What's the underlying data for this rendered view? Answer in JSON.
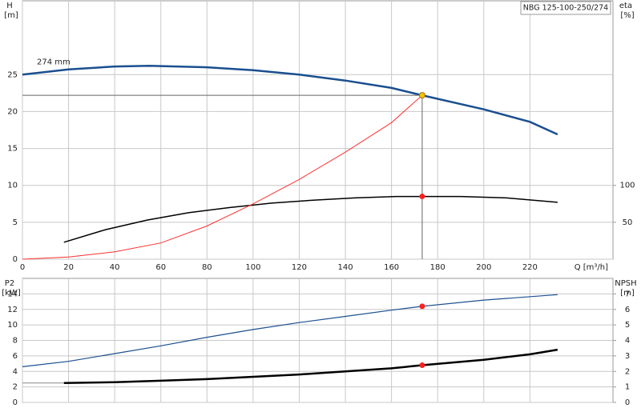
{
  "chart_data": [
    {
      "type": "line",
      "title": "NBG 125-100-250/274",
      "ylabel": "H",
      "yunit": "[m]",
      "y2label": "eta",
      "y2unit": "[%]",
      "xlabel": "Q [m³/h]",
      "annotation": "274 mm",
      "xlim": [
        0,
        256
      ],
      "xticks": [
        0,
        20,
        40,
        60,
        80,
        100,
        120,
        140,
        160,
        180,
        200,
        220
      ],
      "ylim": [
        0,
        35
      ],
      "yticks": [
        0,
        5,
        10,
        15,
        20,
        25
      ],
      "y2lim": [
        0,
        350
      ],
      "y2ticks": [
        50,
        100
      ],
      "grid": true,
      "series": [
        {
          "color": "#1a4f8f",
          "width": 2.5,
          "x": [
            0,
            20,
            40,
            55,
            80,
            100,
            120,
            140,
            160,
            173.3,
            200,
            220,
            232
          ],
          "values": [
            25,
            25.7,
            26.1,
            26.2,
            26.0,
            25.6,
            25.0,
            24.2,
            23.2,
            22.2,
            20.3,
            18.6,
            16.9
          ]
        },
        {
          "color": "#000000",
          "width": 1.5,
          "axis": "y2",
          "x": [
            18,
            36,
            54,
            72,
            90,
            108,
            126,
            144,
            162,
            173.3,
            190,
            210,
            232
          ],
          "values": [
            23,
            40,
            53,
            63,
            70,
            76,
            80,
            83,
            85,
            85,
            85,
            83,
            77
          ]
        },
        {
          "color": "#ff3030",
          "width": 1,
          "x": [
            0,
            20,
            40,
            60,
            80,
            100,
            120,
            140,
            160,
            173.3
          ],
          "values": [
            0,
            0.3,
            1,
            2.2,
            4.5,
            7.5,
            10.8,
            14.5,
            18.5,
            22.2
          ]
        },
        {
          "color": "#f4c400",
          "marker": true,
          "guide": true,
          "x": [
            173.3
          ],
          "values": [
            22.2
          ]
        },
        {
          "color": "#ff2020",
          "marker": true,
          "axis": "y2",
          "x": [
            173.3
          ],
          "values": [
            85
          ]
        }
      ]
    },
    {
      "type": "line",
      "ylabel": "P2",
      "yunit": "[kW]",
      "y2label": "NPSH",
      "y2unit": "[m]",
      "xlim": [
        0,
        256
      ],
      "xgrid": [
        0,
        20,
        40,
        60,
        80,
        100,
        120,
        140,
        160,
        180,
        200,
        220
      ],
      "ylim": [
        0,
        16
      ],
      "yticks": [
        0,
        2,
        4,
        6,
        8,
        10,
        12,
        14
      ],
      "y2lim": [
        0,
        8
      ],
      "y2ticks": [
        0,
        1,
        2,
        3,
        4,
        5,
        6,
        7
      ],
      "grid": true,
      "series": [
        {
          "color": "#1a4f8f",
          "width": 1.2,
          "x": [
            0,
            20,
            40,
            60,
            80,
            100,
            120,
            140,
            160,
            173.3,
            200,
            232
          ],
          "values": [
            4.6,
            5.3,
            6.3,
            7.3,
            8.4,
            9.4,
            10.3,
            11.1,
            11.9,
            12.4,
            13.2,
            13.9
          ]
        },
        {
          "color": "#888888",
          "width": 1,
          "x": [
            0,
            18
          ],
          "values": [
            2.5,
            2.5
          ]
        },
        {
          "color": "#000000",
          "width": 2.5,
          "axis": "y2",
          "x": [
            18,
            40,
            60,
            80,
            100,
            120,
            140,
            160,
            173.3,
            200,
            220,
            232
          ],
          "values": [
            1.25,
            1.3,
            1.4,
            1.5,
            1.65,
            1.8,
            2.0,
            2.2,
            2.4,
            2.75,
            3.1,
            3.4
          ]
        },
        {
          "color": "#ff2020",
          "marker": true,
          "x": [
            173.3
          ],
          "values": [
            12.4
          ]
        },
        {
          "color": "#ff2020",
          "marker": true,
          "axis": "y2",
          "x": [
            173.3
          ],
          "values": [
            2.4
          ]
        }
      ]
    }
  ]
}
